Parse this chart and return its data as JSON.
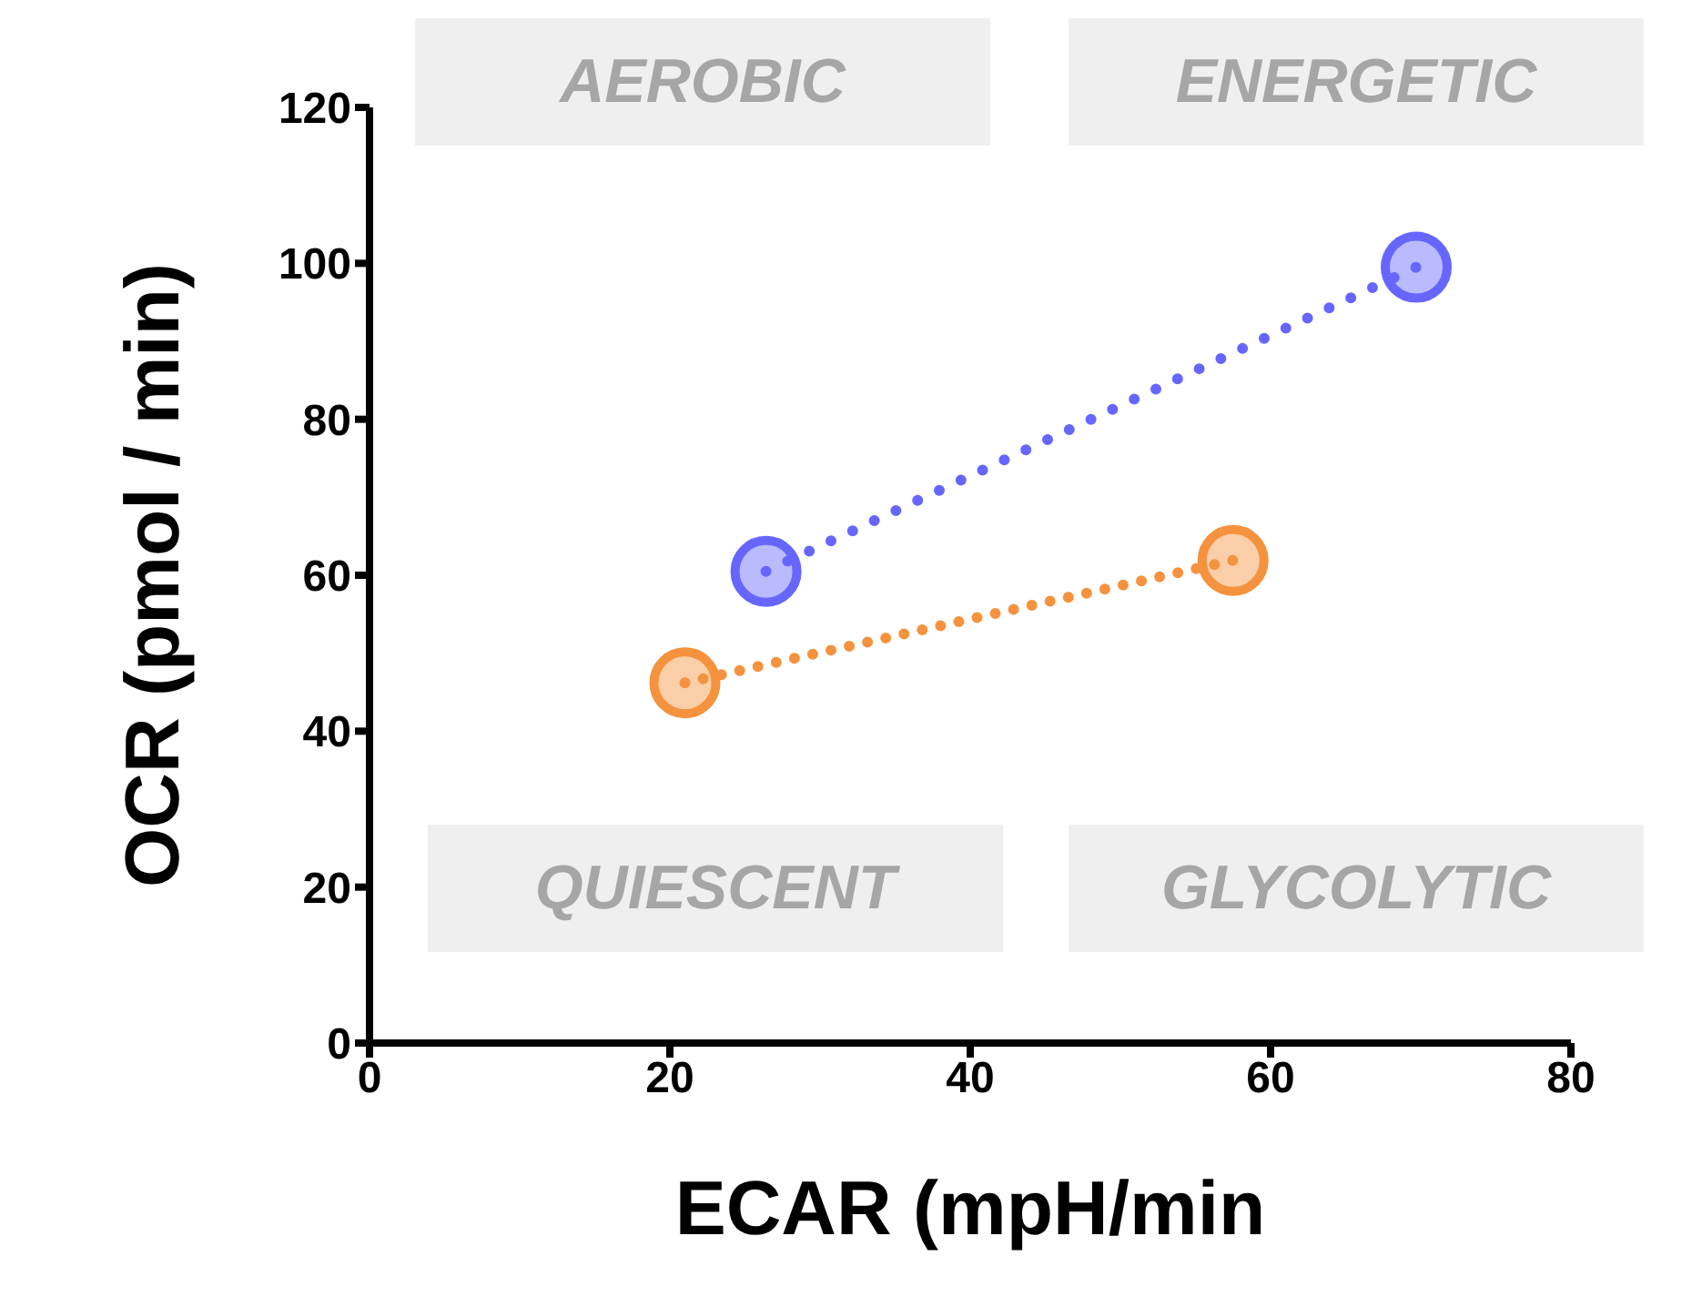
{
  "chart_data": {
    "type": "line",
    "xlabel": "ECAR (mpH/min",
    "ylabel": "OCR (pmol / min)",
    "annotations": [
      "AEROBIC",
      "ENERGETIC",
      "QUIESCENT",
      "GLYCOLYTIC"
    ],
    "series": [
      {
        "color": "#6666ff",
        "x": [
          26.4,
          69.7
        ],
        "values": [
          60.5,
          99.5
        ]
      },
      {
        "color": "#f5923e",
        "x": [
          21.0,
          57.5
        ],
        "values": [
          46.2,
          61.9
        ]
      }
    ],
    "xlim": [
      0,
      80
    ],
    "xticks": [
      0,
      20,
      40,
      60,
      80
    ],
    "ylim": [
      0,
      120
    ],
    "yticks": [
      0,
      20,
      40,
      60,
      80,
      100,
      120
    ],
    "grid": false,
    "legend": false,
    "marker": "circle",
    "line_style": "dotted"
  }
}
